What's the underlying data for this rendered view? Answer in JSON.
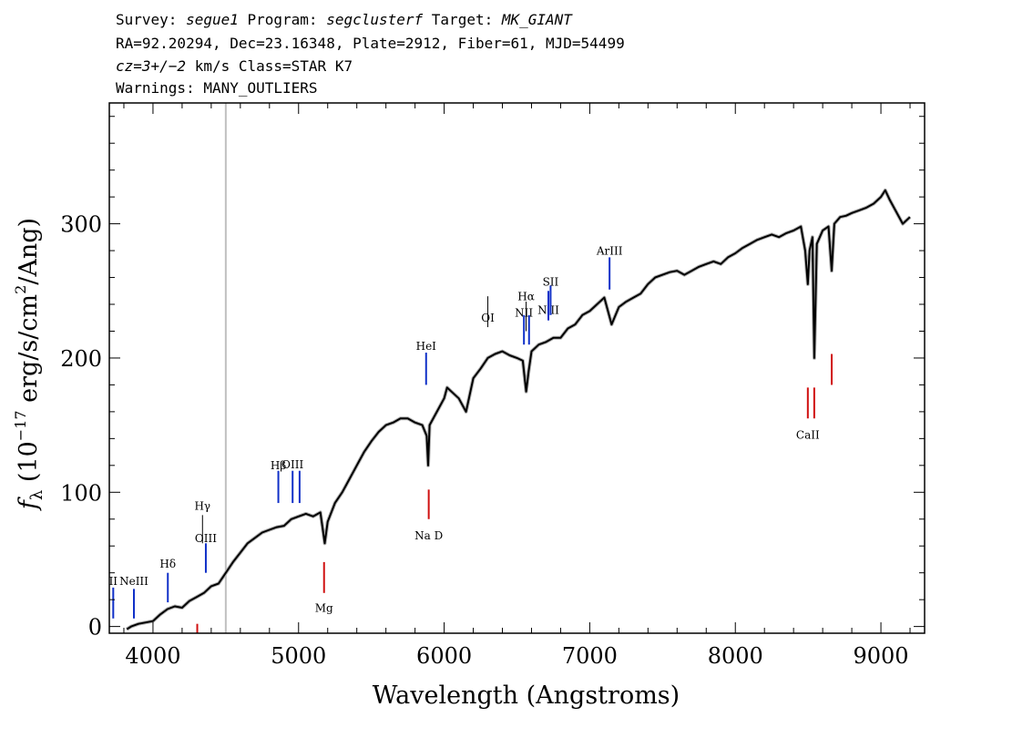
{
  "header": {
    "line1": [
      {
        "text": "Survey: ",
        "italic": false
      },
      {
        "text": "segue1",
        "italic": true
      },
      {
        "text": " Program: ",
        "italic": false
      },
      {
        "text": "segclusterf",
        "italic": true
      },
      {
        "text": " Target: ",
        "italic": false
      },
      {
        "text": "MK_GIANT",
        "italic": true
      }
    ],
    "line2": "RA=92.20294, Dec=23.16348, Plate=2912, Fiber=61, MJD=54499",
    "line3": [
      {
        "text": "cz=3+/−2",
        "italic": true
      },
      {
        "text": " km/s Class=STAR K7",
        "italic": false
      }
    ],
    "line4": "Warnings: MANY_OUTLIERS"
  },
  "chart_data": {
    "type": "line",
    "xlabel": "Wavelength (Angstroms)",
    "ylabel_parts": [
      "f",
      "λ",
      " (10",
      "−17",
      " erg/s/cm",
      "2",
      "/Ang)"
    ],
    "xlim": [
      3700,
      9300
    ],
    "ylim": [
      -5,
      390
    ],
    "x_ticks": [
      4000,
      5000,
      6000,
      7000,
      8000,
      9000
    ],
    "y_ticks": [
      0,
      100,
      200,
      300
    ],
    "x_minor_step": 200,
    "y_minor_step": 20,
    "vertical_marker": {
      "x": 4500,
      "color": "#c0c0c0"
    },
    "colors": {
      "spectrum": "#000000",
      "error": "#b0b0b0",
      "emission": "#1030c8",
      "absorption": "#d01010",
      "marker_dark": "#000000"
    },
    "series": [
      {
        "x": [
          3820,
          3850,
          3900,
          3950,
          4000,
          4050,
          4100,
          4150,
          4200,
          4250,
          4300,
          4350,
          4400,
          4450,
          4500,
          4550,
          4600,
          4650,
          4700,
          4750,
          4800,
          4850,
          4900,
          4950,
          5000,
          5050,
          5100,
          5150,
          5180,
          5200,
          5250,
          5300,
          5350,
          5400,
          5450,
          5500,
          5550,
          5600,
          5650,
          5700,
          5750,
          5800,
          5850,
          5880,
          5890,
          5900,
          5950,
          6000,
          6020,
          6050,
          6100,
          6150,
          6200,
          6250,
          6300,
          6350,
          6400,
          6450,
          6500,
          6540,
          6563,
          6580,
          6600,
          6650,
          6700,
          6750,
          6800,
          6850,
          6900,
          6950,
          7000,
          7050,
          7100,
          7150,
          7200,
          7250,
          7300,
          7350,
          7400,
          7450,
          7500,
          7550,
          7600,
          7650,
          7700,
          7750,
          7800,
          7850,
          7900,
          7950,
          8000,
          8050,
          8100,
          8150,
          8200,
          8250,
          8300,
          8350,
          8400,
          8450,
          8480,
          8498,
          8510,
          8530,
          8542,
          8560,
          8600,
          8640,
          8662,
          8680,
          8720,
          8760,
          8800,
          8850,
          8900,
          8950,
          9000,
          9030,
          9060,
          9100,
          9150,
          9200
        ],
        "y": [
          -2,
          0,
          2,
          3,
          4,
          9,
          13,
          15,
          14,
          19,
          22,
          25,
          30,
          32,
          40,
          48,
          55,
          62,
          66,
          70,
          72,
          74,
          75,
          80,
          82,
          84,
          82,
          85,
          62,
          78,
          92,
          100,
          110,
          120,
          130,
          138,
          145,
          150,
          152,
          155,
          155,
          152,
          150,
          142,
          120,
          150,
          160,
          170,
          178,
          175,
          170,
          160,
          185,
          192,
          200,
          203,
          205,
          202,
          200,
          198,
          175,
          190,
          205,
          210,
          212,
          215,
          215,
          222,
          225,
          232,
          235,
          240,
          245,
          225,
          238,
          242,
          245,
          248,
          255,
          260,
          262,
          264,
          265,
          262,
          265,
          268,
          270,
          272,
          270,
          275,
          278,
          282,
          285,
          288,
          290,
          292,
          290,
          293,
          295,
          298,
          280,
          255,
          280,
          290,
          200,
          285,
          295,
          298,
          265,
          300,
          305,
          306,
          308,
          310,
          312,
          315,
          320,
          325,
          318,
          310,
          300,
          305
        ],
        "color": "#000000"
      }
    ],
    "lines": [
      {
        "label": "OII",
        "display": "II",
        "x": 3727,
        "y0": 6,
        "y1": 29,
        "color": "emission",
        "label_y": 31
      },
      {
        "label": "NeIII",
        "x": 3869,
        "y0": 6,
        "y1": 28,
        "color": "emission",
        "label_y": 31
      },
      {
        "label": "Hδ",
        "x": 4102,
        "y0": 18,
        "y1": 40,
        "color": "emission",
        "label_y": 44
      },
      {
        "label": "Hγ",
        "x": 4340,
        "y0": 62,
        "y1": 83,
        "color": "marker_dark",
        "label_y": 87
      },
      {
        "label": "OIII",
        "x": 4363,
        "y0": 40,
        "y1": 62,
        "color": "emission",
        "label_y": 63
      },
      {
        "label": "Hβ",
        "x": 4861,
        "y0": 92,
        "y1": 116,
        "color": "emission",
        "label_y": 117
      },
      {
        "label": "OIII",
        "x": 4959,
        "y0": 92,
        "y1": 116,
        "color": "emission",
        "label_y": 118
      },
      {
        "label": "",
        "x": 5007,
        "y0": 92,
        "y1": 116,
        "color": "emission",
        "label_y": 0
      },
      {
        "label": "HeI",
        "x": 5876,
        "y0": 180,
        "y1": 204,
        "color": "emission",
        "label_y": 206
      },
      {
        "label": "OI",
        "x": 6300,
        "y0": 223,
        "y1": 246,
        "color": "marker_dark",
        "label_y": 227
      },
      {
        "label": "NII",
        "x": 6548,
        "y0": 210,
        "y1": 232,
        "color": "emission",
        "label_y": 231
      },
      {
        "label": "Hα",
        "x": 6563,
        "y0": 220,
        "y1": 242,
        "color": "marker_dark",
        "label_y": 243
      },
      {
        "label": "",
        "x": 6583,
        "y0": 210,
        "y1": 232,
        "color": "emission",
        "label_y": 0
      },
      {
        "label": "NII",
        "display": "N II",
        "x": 6716,
        "y0": 228,
        "y1": 250,
        "color": "emission",
        "label_y": 233
      },
      {
        "label": "SII",
        "x": 6731,
        "y0": 232,
        "y1": 254,
        "color": "emission",
        "label_y": 254
      },
      {
        "label": "ArIII",
        "x": 7136,
        "y0": 251,
        "y1": 275,
        "color": "emission",
        "label_y": 277
      },
      {
        "label": "Mg",
        "x": 5175,
        "y0": 25,
        "y1": 48,
        "color": "absorption",
        "label_y": 11
      },
      {
        "label": "Na D",
        "display": "Na  D",
        "x": 5894,
        "y0": 80,
        "y1": 102,
        "color": "absorption",
        "label_y": 65
      },
      {
        "label": "CaII",
        "x": 8498,
        "y0": 155,
        "y1": 178,
        "color": "absorption",
        "label_y": 140
      },
      {
        "label": "",
        "x": 8542,
        "y0": 155,
        "y1": 178,
        "color": "absorption",
        "label_y": 0
      },
      {
        "label": "",
        "x": 8662,
        "y0": 180,
        "y1": 203,
        "color": "absorption",
        "label_y": 0
      },
      {
        "label": "",
        "x": 4304,
        "y0": -5,
        "y1": 2,
        "color": "absorption",
        "label_y": 0
      }
    ]
  }
}
